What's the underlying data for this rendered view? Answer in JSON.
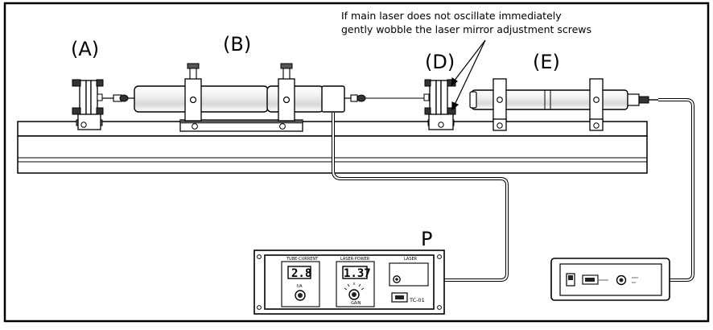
{
  "note": {
    "line1": "If main laser does not oscillate immediately",
    "line2": "gently wobble the laser mirror adjustment screws"
  },
  "labels": {
    "a": "(A)",
    "b": "(B)",
    "d": "(D)",
    "e": "(E)",
    "p": "P"
  },
  "controller": {
    "tube_current_title": "TUBE-CURRENT",
    "tube_current_value": "2.8",
    "tube_current_unit": "I/A",
    "laser_power_title": "LASER-POWER",
    "laser_power_value": "1.37",
    "gain_label": "GAIN",
    "laser_title": "LASER",
    "model": "TC-01"
  },
  "colors": {
    "line": "#000000",
    "fill": "#ffffff",
    "shade": "#d9d9d9",
    "dark": "#333333"
  }
}
